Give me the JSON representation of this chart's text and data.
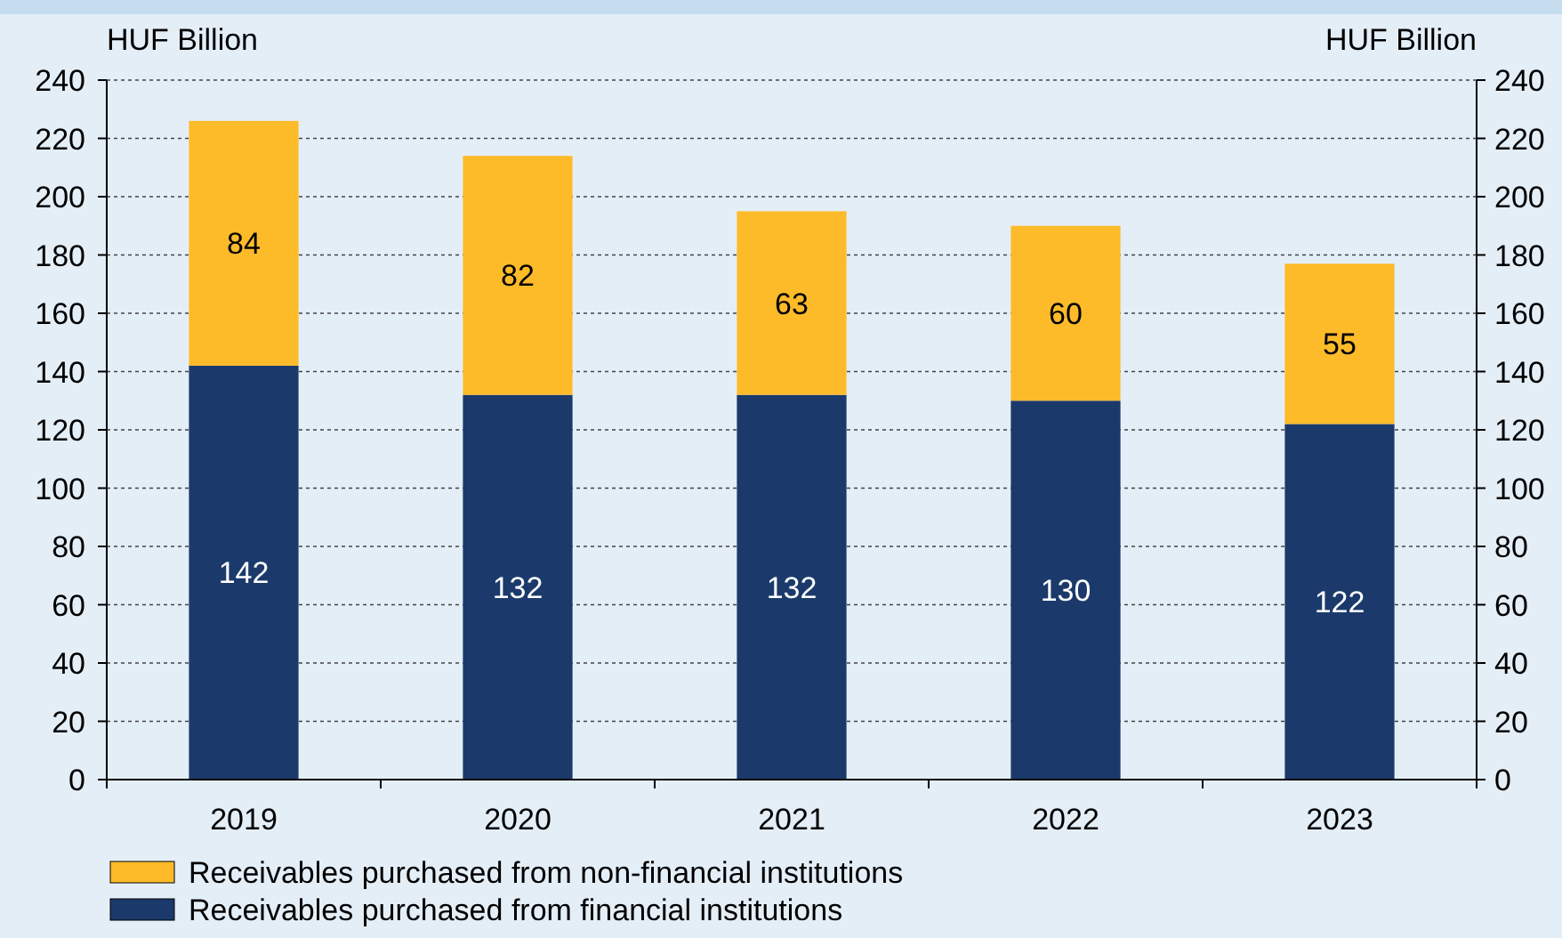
{
  "chart_data": {
    "type": "bar",
    "stacked": true,
    "categories": [
      "2019",
      "2020",
      "2021",
      "2022",
      "2023"
    ],
    "series": [
      {
        "name": "Receivables purchased from financial institutions",
        "color": "#1b3a6b",
        "values": [
          142,
          132,
          132,
          130,
          122
        ]
      },
      {
        "name": "Receivables purchased from non-financial institutions",
        "color": "#fdbb2a",
        "values": [
          84,
          82,
          63,
          60,
          55
        ]
      }
    ],
    "ylabel": "HUF Billion",
    "y2label": "HUF Billion",
    "ylim": [
      0,
      240
    ],
    "yticks": [
      0,
      20,
      40,
      60,
      80,
      100,
      120,
      140,
      160,
      180,
      200,
      220,
      240
    ],
    "y2lim": [
      0,
      240
    ],
    "y2ticks": [
      0,
      20,
      40,
      60,
      80,
      100,
      120,
      140,
      160,
      180,
      200,
      220,
      240
    ],
    "grid": "y",
    "legend": "bottom",
    "data_labels": true
  }
}
